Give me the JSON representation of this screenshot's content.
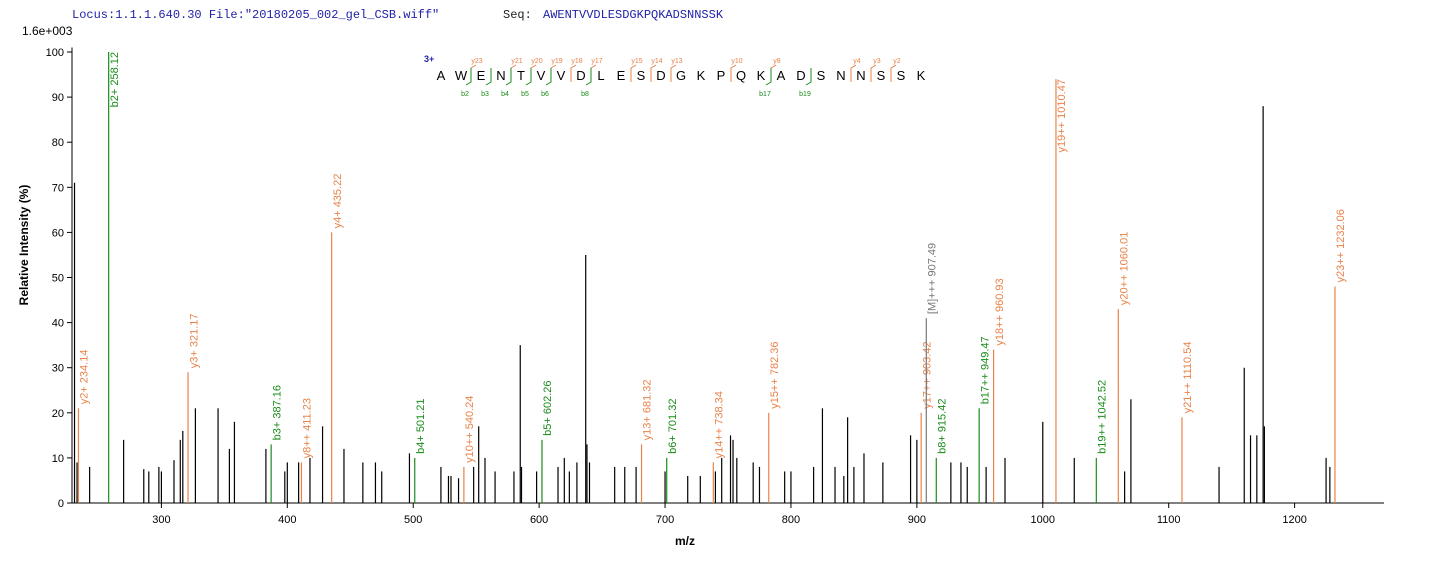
{
  "chart_data": {
    "type": "stem",
    "header": "Locus:1.1.1.640.30 File:\"20180205_002_gel_CSB.wiff\"",
    "seq_label": "Seq:",
    "seq": "AWENTVVDLESDGKPQKADSNNSSK",
    "scale_note": "1.6e+003",
    "ylabel": "Relative Intensity (%)",
    "xlabel": "m/z",
    "xlim": [
      229,
      1271
    ],
    "ylim": [
      0,
      101
    ],
    "xticks": [
      300,
      400,
      500,
      600,
      700,
      800,
      900,
      1000,
      1100,
      1200
    ],
    "yticks": [
      0,
      10,
      20,
      30,
      40,
      50,
      60,
      70,
      80,
      90,
      100
    ],
    "peaks": {
      "color": "#000000",
      "x": [
        231,
        233,
        243,
        270,
        286,
        290,
        298,
        300,
        310,
        315,
        317,
        327,
        345,
        354,
        358,
        383,
        398,
        400,
        409,
        418,
        428,
        445,
        460,
        470,
        475,
        497,
        522,
        528,
        530,
        536,
        548,
        552,
        557,
        565,
        580,
        585,
        586,
        598,
        615,
        620,
        624,
        630,
        637,
        638,
        640,
        660,
        668,
        677,
        700,
        718,
        728,
        740,
        745,
        752,
        754,
        757,
        770,
        775,
        795,
        800,
        818,
        825,
        835,
        842,
        845,
        850,
        858,
        873,
        895,
        900,
        927,
        935,
        940,
        955,
        970,
        1000,
        1025,
        1065,
        1070,
        1140,
        1160,
        1165,
        1170,
        1175,
        1176,
        1225,
        1228
      ],
      "values": [
        71,
        9,
        8,
        14,
        7.5,
        7,
        8,
        7,
        9.5,
        14,
        16,
        21,
        21,
        12,
        18,
        12,
        7,
        9,
        9,
        10,
        17,
        12,
        9,
        9,
        7,
        11,
        8,
        6,
        6,
        5.5,
        8,
        17,
        10,
        7,
        7,
        35,
        8,
        7,
        8,
        10,
        7,
        9,
        55,
        13,
        9,
        8,
        8,
        8,
        7,
        6,
        6,
        7,
        10,
        15,
        14,
        10,
        9,
        8,
        7,
        7,
        8,
        21,
        8,
        6,
        19,
        8,
        11,
        9,
        15,
        14,
        9,
        9,
        8,
        8,
        10,
        18,
        10,
        7,
        23,
        8,
        30,
        15,
        15,
        88,
        17,
        10,
        8
      ]
    },
    "annotations": [
      {
        "label": "y2+ 234.14",
        "x": 234.14,
        "value": 21,
        "color": "#e8834a"
      },
      {
        "label": "b2+ 258.12",
        "x": 258.12,
        "value": 100,
        "color": "#1a8c1a"
      },
      {
        "label": "y3+ 321.17",
        "x": 321.17,
        "value": 29,
        "color": "#e8834a"
      },
      {
        "label": "b3+ 387.16",
        "x": 387.16,
        "value": 13,
        "color": "#1a8c1a"
      },
      {
        "label": "y8++ 411.23",
        "x": 411.23,
        "value": 9,
        "color": "#e8834a"
      },
      {
        "label": "y4+ 435.22",
        "x": 435.22,
        "value": 60,
        "color": "#e8834a"
      },
      {
        "label": "b4+ 501.21",
        "x": 501.21,
        "value": 10,
        "color": "#1a8c1a"
      },
      {
        "label": "y10++ 540.24",
        "x": 540.24,
        "value": 8,
        "color": "#e8834a"
      },
      {
        "label": "b5+ 602.26",
        "x": 602.26,
        "value": 14,
        "color": "#1a8c1a"
      },
      {
        "label": "y13+ 681.32",
        "x": 681.32,
        "value": 13,
        "color": "#e8834a"
      },
      {
        "label": "b6+ 701.32",
        "x": 701.32,
        "value": 10,
        "color": "#1a8c1a"
      },
      {
        "label": "y14++ 738.34",
        "x": 738.34,
        "value": 9,
        "color": "#e8834a"
      },
      {
        "label": "y15++ 782.36",
        "x": 782.36,
        "value": 20,
        "color": "#e8834a"
      },
      {
        "label": "y17++ 903.42",
        "x": 903.42,
        "value": 20,
        "color": "#e8834a"
      },
      {
        "label": "[M]+++ 907.49",
        "x": 907.49,
        "value": 41,
        "color": "#777777"
      },
      {
        "label": "b8+ 915.42",
        "x": 915.42,
        "value": 10,
        "color": "#1a8c1a"
      },
      {
        "label": "b17++ 949.47",
        "x": 949.47,
        "value": 21,
        "color": "#1a8c1a"
      },
      {
        "label": "y18++ 960.93",
        "x": 960.93,
        "value": 34,
        "color": "#e8834a"
      },
      {
        "label": "y19++ 1010.47",
        "x": 1010.47,
        "value": 94,
        "color": "#e8834a"
      },
      {
        "label": "b19++ 1042.52",
        "x": 1042.52,
        "value": 10,
        "color": "#1a8c1a"
      },
      {
        "label": "y20++ 1060.01",
        "x": 1060.01,
        "value": 43,
        "color": "#e8834a"
      },
      {
        "label": "y21++ 1110.54",
        "x": 1110.54,
        "value": 19,
        "color": "#e8834a"
      },
      {
        "label": "y23++ 1232.06",
        "x": 1232.06,
        "value": 48,
        "color": "#e8834a"
      }
    ],
    "sequence": {
      "charge": "3+",
      "letters": [
        "A",
        "W",
        "E",
        "N",
        "T",
        "V",
        "V",
        "D",
        "L",
        "E",
        "S",
        "D",
        "G",
        "K",
        "P",
        "Q",
        "K",
        "A",
        "D",
        "S",
        "N",
        "N",
        "S",
        "S",
        "K"
      ],
      "y_ions": [
        "y23",
        "y21",
        "y20",
        "y19",
        "y18",
        "y17",
        "y15",
        "y14",
        "y13",
        "y10",
        "y8",
        "y4",
        "y3",
        "y2"
      ],
      "b_ions": [
        "b2",
        "b3",
        "b4",
        "b5",
        "b6",
        "b8",
        "b17",
        "b19"
      ]
    }
  }
}
